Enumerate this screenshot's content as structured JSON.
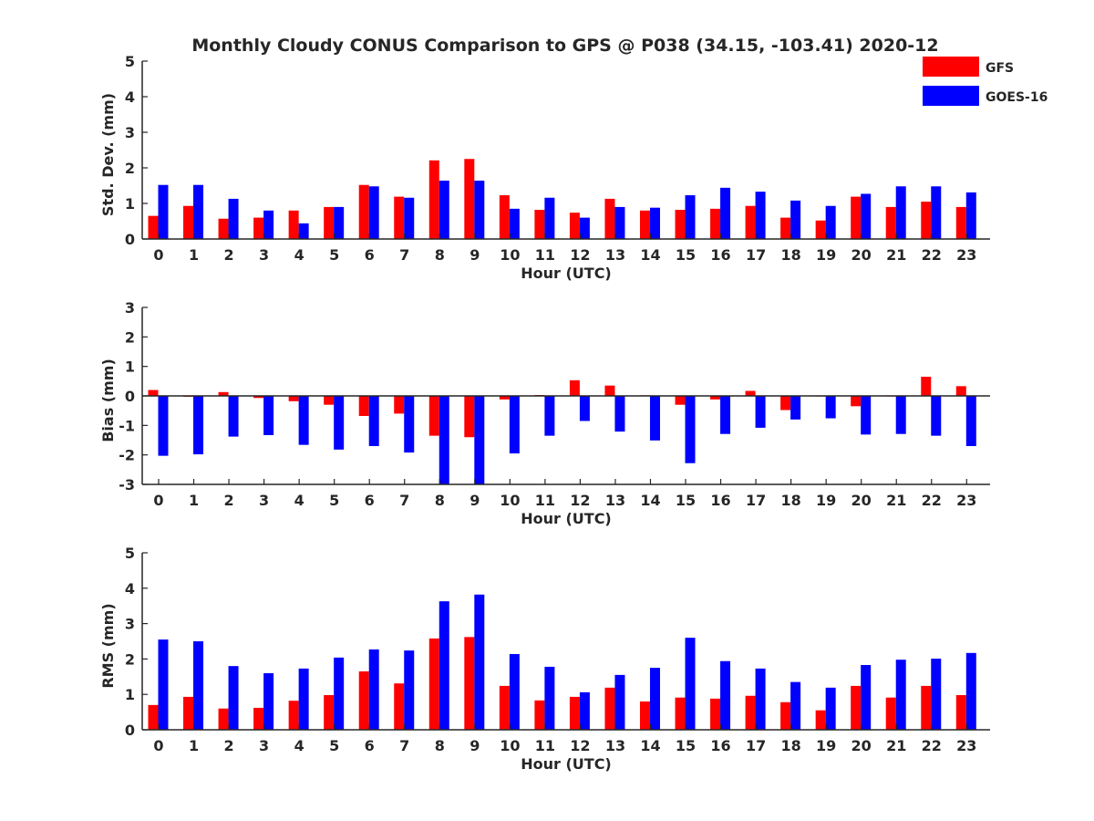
{
  "title": "Monthly Cloudy CONUS Comparison to GPS @ P038 (34.15, -103.41) 2020-12",
  "legend": [
    {
      "name": "GFS",
      "color": "#ff0000"
    },
    {
      "name": "GOES-16",
      "color": "#0000ff"
    }
  ],
  "chart_data": [
    {
      "type": "bar",
      "xlabel": "Hour (UTC)",
      "ylabel": "Std. Dev. (mm)",
      "ylim": [
        0,
        5
      ],
      "yticks": [
        0,
        1,
        2,
        3,
        4,
        5
      ],
      "categories": [
        "0",
        "1",
        "2",
        "3",
        "4",
        "5",
        "6",
        "7",
        "8",
        "9",
        "10",
        "11",
        "12",
        "13",
        "14",
        "15",
        "16",
        "17",
        "18",
        "19",
        "20",
        "21",
        "22",
        "23"
      ],
      "series": [
        {
          "name": "GFS",
          "color": "#ff0000",
          "values": [
            0.65,
            0.93,
            0.57,
            0.6,
            0.8,
            0.9,
            1.52,
            1.19,
            2.21,
            2.25,
            1.23,
            0.82,
            0.74,
            1.13,
            0.8,
            0.82,
            0.85,
            0.93,
            0.6,
            0.52,
            1.19,
            0.9,
            1.05,
            0.9
          ]
        },
        {
          "name": "GOES-16",
          "color": "#0000ff",
          "values": [
            1.52,
            1.52,
            1.13,
            0.8,
            0.44,
            0.9,
            1.48,
            1.16,
            1.64,
            1.64,
            0.85,
            1.16,
            0.6,
            0.9,
            0.88,
            1.23,
            1.44,
            1.33,
            1.08,
            0.93,
            1.27,
            1.48,
            1.48,
            1.31
          ]
        }
      ]
    },
    {
      "type": "bar",
      "xlabel": "Hour (UTC)",
      "ylabel": "Bias (mm)",
      "ylim": [
        -3,
        3
      ],
      "yticks": [
        -3,
        -2,
        -1,
        0,
        1,
        2,
        3
      ],
      "categories": [
        "0",
        "1",
        "2",
        "3",
        "4",
        "5",
        "6",
        "7",
        "8",
        "9",
        "10",
        "11",
        "12",
        "13",
        "14",
        "15",
        "16",
        "17",
        "18",
        "19",
        "20",
        "21",
        "22",
        "23"
      ],
      "series": [
        {
          "name": "GFS",
          "color": "#ff0000",
          "values": [
            0.2,
            -0.03,
            0.13,
            -0.07,
            -0.18,
            -0.3,
            -0.68,
            -0.6,
            -1.35,
            -1.4,
            -0.12,
            0.03,
            0.53,
            0.35,
            0.02,
            -0.3,
            -0.12,
            0.17,
            -0.48,
            -0.02,
            -0.35,
            -0.02,
            0.65,
            0.33
          ]
        },
        {
          "name": "GOES-16",
          "color": "#0000ff",
          "values": [
            -2.03,
            -1.98,
            -1.38,
            -1.33,
            -1.66,
            -1.82,
            -1.7,
            -1.92,
            -3.0,
            -3.0,
            -1.95,
            -1.35,
            -0.85,
            -1.21,
            -1.51,
            -2.28,
            -1.29,
            -1.08,
            -0.8,
            -0.76,
            -1.31,
            -1.29,
            -1.35,
            -1.7
          ]
        }
      ]
    },
    {
      "type": "bar",
      "xlabel": "Hour (UTC)",
      "ylabel": "RMS (mm)",
      "ylim": [
        0,
        5
      ],
      "yticks": [
        0,
        1,
        2,
        3,
        4,
        5
      ],
      "categories": [
        "0",
        "1",
        "2",
        "3",
        "4",
        "5",
        "6",
        "7",
        "8",
        "9",
        "10",
        "11",
        "12",
        "13",
        "14",
        "15",
        "16",
        "17",
        "18",
        "19",
        "20",
        "21",
        "22",
        "23"
      ],
      "series": [
        {
          "name": "GFS",
          "color": "#ff0000",
          "values": [
            0.7,
            0.93,
            0.6,
            0.62,
            0.82,
            0.98,
            1.65,
            1.31,
            2.58,
            2.62,
            1.24,
            0.83,
            0.93,
            1.19,
            0.8,
            0.91,
            0.88,
            0.96,
            0.78,
            0.55,
            1.24,
            0.91,
            1.24,
            0.98
          ]
        },
        {
          "name": "GOES-16",
          "color": "#0000ff",
          "values": [
            2.55,
            2.5,
            1.8,
            1.6,
            1.73,
            2.04,
            2.27,
            2.24,
            3.63,
            3.82,
            2.14,
            1.78,
            1.06,
            1.55,
            1.75,
            2.6,
            1.94,
            1.73,
            1.35,
            1.19,
            1.83,
            1.98,
            2.01,
            2.17
          ]
        }
      ]
    }
  ]
}
